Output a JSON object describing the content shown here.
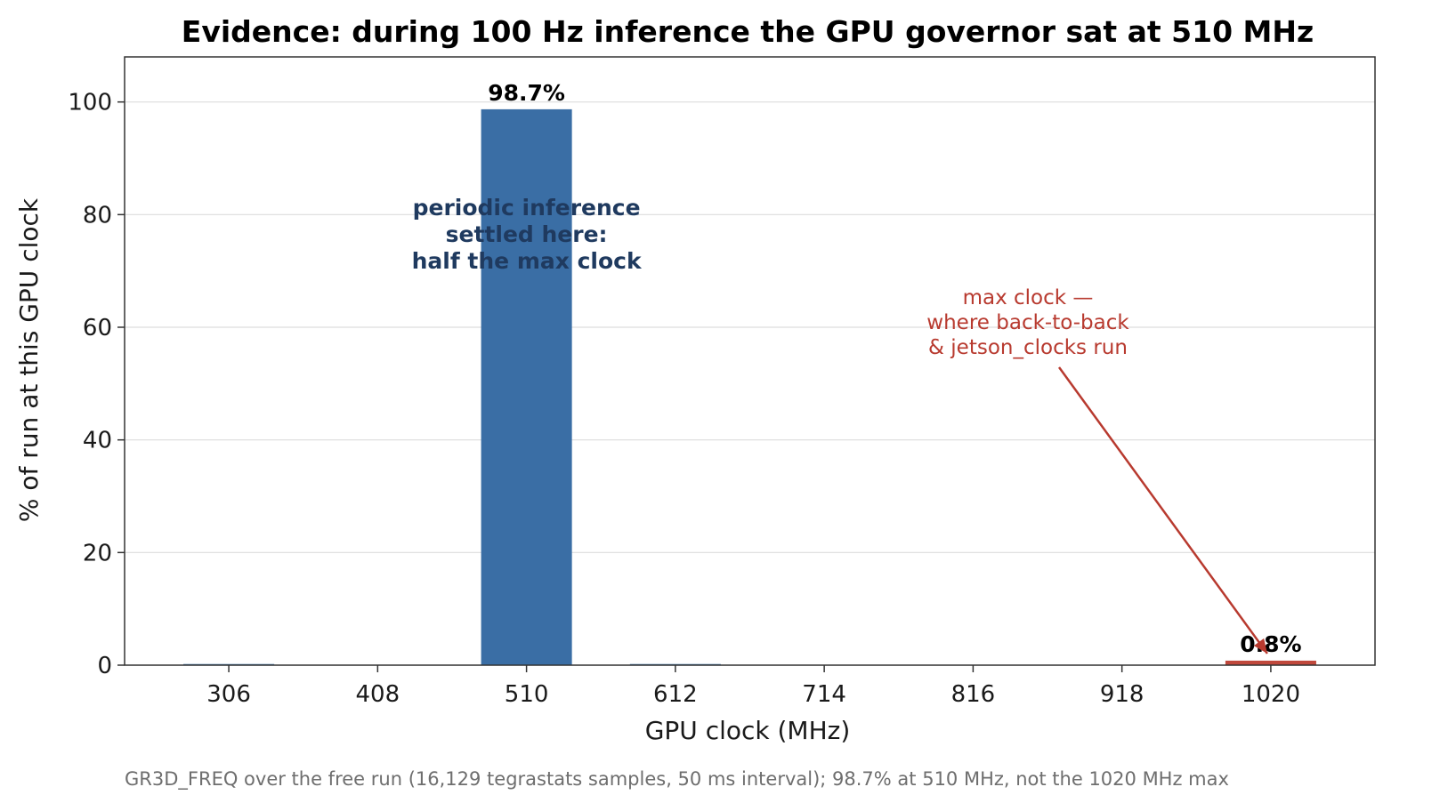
{
  "chart_data": {
    "type": "bar",
    "title": "Evidence: during 100 Hz inference the GPU governor sat at 510 MHz",
    "xlabel": "GPU clock (MHz)",
    "ylabel": "% of run at this GPU clock",
    "categories": [
      "306",
      "408",
      "510",
      "612",
      "714",
      "816",
      "918",
      "1020"
    ],
    "values": [
      0.2,
      0,
      98.7,
      0.2,
      0,
      0,
      0,
      0.8
    ],
    "bar_colors": [
      "#3a6ea5",
      "#3a6ea5",
      "#3a6ea5",
      "#3a6ea5",
      "#3a6ea5",
      "#3a6ea5",
      "#3a6ea5",
      "#c0483c"
    ],
    "ylim": [
      0,
      108
    ],
    "yticks": [
      0,
      20,
      40,
      60,
      80,
      100
    ],
    "grid": "horizontal",
    "data_labels": [
      {
        "category": "510",
        "text": "98.7%"
      },
      {
        "category": "1020",
        "text": "0.8%"
      }
    ],
    "annotations": [
      {
        "category": "510",
        "y": 80,
        "lines": [
          "periodic inference",
          "settled here:",
          "half the max clock"
        ]
      },
      {
        "category": "1020",
        "lines": [
          "max clock —",
          "where back-to-back",
          "& jetson_clocks run"
        ]
      }
    ],
    "caption": "GR3D_FREQ over the free run (16,129 tegrastats samples, 50 ms interval); 98.7% at 510 MHz, not the 1020 MHz max"
  },
  "colors": {
    "bar": "#3a6ea5",
    "highlight": "#c0483c",
    "annotation_blue": "#1f3a5f",
    "annotation_red": "#b83a2f"
  }
}
